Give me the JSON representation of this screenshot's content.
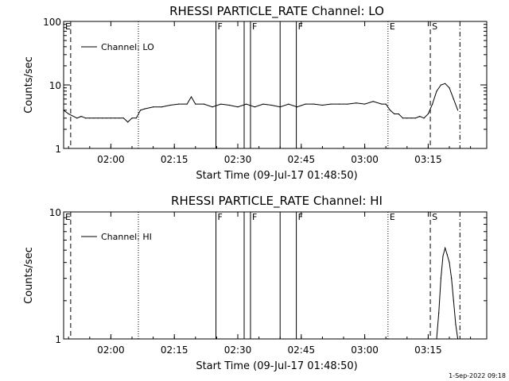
{
  "chart_data": [
    {
      "type": "line",
      "title": "RHESSI PARTICLE_RATE Channel: LO",
      "xlabel": "Start Time (09-Jul-17 01:48:50)",
      "ylabel": "Counts/sec",
      "yscale": "log",
      "ylim": [
        1,
        100
      ],
      "xlim": [
        "01:48:50",
        "03:28:50"
      ],
      "x_ticks": [
        "02:00",
        "02:15",
        "02:30",
        "02:45",
        "03:00",
        "03:15"
      ],
      "y_ticks": [
        "1",
        "10",
        "100"
      ],
      "legend": "Channel: LO",
      "legend_position": "top-left",
      "series": [
        {
          "name": "Channel: LO",
          "x": [
            "01:48:50",
            "01:50:00",
            "01:52:00",
            "01:53:00",
            "01:54:00",
            "01:55:00",
            "01:56:00",
            "01:57:00",
            "01:58:00",
            "01:59:00",
            "02:00:00",
            "02:01:00",
            "02:02:00",
            "02:03:00",
            "02:04:00",
            "02:05:00",
            "02:06:00",
            "02:07:00",
            "02:08:00",
            "02:10:00",
            "02:12:00",
            "02:14:00",
            "02:16:00",
            "02:18:00",
            "02:19:00",
            "02:20:00",
            "02:22:00",
            "02:24:00",
            "02:26:00",
            "02:28:00",
            "02:30:00",
            "02:32:00",
            "02:34:00",
            "02:36:00",
            "02:38:00",
            "02:40:00",
            "02:42:00",
            "02:44:00",
            "02:46:00",
            "02:48:00",
            "02:50:00",
            "02:52:00",
            "02:54:00",
            "02:56:00",
            "02:58:00",
            "03:00:00",
            "03:02:00",
            "03:04:00",
            "03:05:00",
            "03:06:00",
            "03:07:00",
            "03:08:00",
            "03:09:00",
            "03:10:00",
            "03:11:00",
            "03:12:00",
            "03:13:00",
            "03:14:00",
            "03:15:00",
            "03:16:00",
            "03:17:00",
            "03:18:00",
            "03:19:00",
            "03:20:00",
            "03:21:00",
            "03:22:00"
          ],
          "y": [
            4.0,
            3.5,
            3.0,
            3.2,
            3.0,
            3.0,
            3.0,
            3.0,
            3.0,
            3.0,
            3.0,
            3.0,
            3.0,
            3.0,
            2.6,
            3.0,
            3.0,
            4.0,
            4.2,
            4.5,
            4.5,
            4.8,
            5.0,
            5.0,
            6.5,
            5.0,
            5.0,
            4.5,
            5.0,
            4.8,
            4.5,
            5.0,
            4.5,
            5.0,
            4.8,
            4.5,
            5.0,
            4.5,
            5.0,
            5.0,
            4.8,
            5.0,
            5.0,
            5.0,
            5.2,
            5.0,
            5.5,
            5.0,
            5.0,
            4.0,
            3.5,
            3.5,
            3.0,
            3.0,
            3.0,
            3.0,
            3.2,
            3.0,
            3.5,
            5.0,
            8.0,
            10.0,
            10.5,
            9.0,
            6.0,
            4.0
          ]
        }
      ],
      "annotations": [
        {
          "label": "E",
          "time": "01:48:50",
          "style": "dashed"
        },
        {
          "label": "",
          "time": "01:50:30",
          "style": "dashed"
        },
        {
          "label": "",
          "time": "02:06:30",
          "style": "dotted"
        },
        {
          "label": "F",
          "time": "02:24:50",
          "style": "solid"
        },
        {
          "label": "",
          "time": "02:31:30",
          "style": "solid"
        },
        {
          "label": "F",
          "time": "02:33:00",
          "style": "solid"
        },
        {
          "label": "",
          "time": "02:40:00",
          "style": "solid"
        },
        {
          "label": "F",
          "time": "02:43:50",
          "style": "solid"
        },
        {
          "label": "E",
          "time": "03:05:30",
          "style": "dotted"
        },
        {
          "label": "S",
          "time": "03:15:30",
          "style": "dashed"
        },
        {
          "label": "",
          "time": "03:22:30",
          "style": "dash-dot"
        }
      ]
    },
    {
      "type": "line",
      "title": "RHESSI PARTICLE_RATE Channel: HI",
      "xlabel": "Start Time (09-Jul-17 01:48:50)",
      "ylabel": "Counts/sec",
      "yscale": "log",
      "ylim": [
        1,
        10
      ],
      "xlim": [
        "01:48:50",
        "03:28:50"
      ],
      "x_ticks": [
        "02:00",
        "02:15",
        "02:30",
        "02:45",
        "03:00",
        "03:15"
      ],
      "y_ticks": [
        "1",
        "10"
      ],
      "legend": "Channel: HI",
      "legend_position": "top-left",
      "series": [
        {
          "name": "Channel: HI",
          "x": [
            "03:17:00",
            "03:17:30",
            "03:18:00",
            "03:18:30",
            "03:19:00",
            "03:19:30",
            "03:20:00",
            "03:20:30",
            "03:21:00",
            "03:21:30",
            "03:22:00"
          ],
          "y": [
            1.0,
            1.6,
            3.0,
            4.5,
            5.2,
            4.6,
            4.0,
            3.0,
            2.0,
            1.3,
            1.0
          ]
        }
      ],
      "annotations": [
        {
          "label": "E",
          "time": "01:48:50",
          "style": "dashed"
        },
        {
          "label": "",
          "time": "01:50:30",
          "style": "dashed"
        },
        {
          "label": "",
          "time": "02:06:30",
          "style": "dotted"
        },
        {
          "label": "F",
          "time": "02:24:50",
          "style": "solid"
        },
        {
          "label": "",
          "time": "02:31:30",
          "style": "solid"
        },
        {
          "label": "F",
          "time": "02:33:00",
          "style": "solid"
        },
        {
          "label": "",
          "time": "02:40:00",
          "style": "solid"
        },
        {
          "label": "F",
          "time": "02:43:50",
          "style": "solid"
        },
        {
          "label": "E",
          "time": "03:05:30",
          "style": "dotted"
        },
        {
          "label": "S",
          "time": "03:15:30",
          "style": "dashed"
        },
        {
          "label": "",
          "time": "03:22:30",
          "style": "dash-dot"
        }
      ]
    }
  ],
  "footer": {
    "timestamp": "1-Sep-2022 09:18"
  }
}
